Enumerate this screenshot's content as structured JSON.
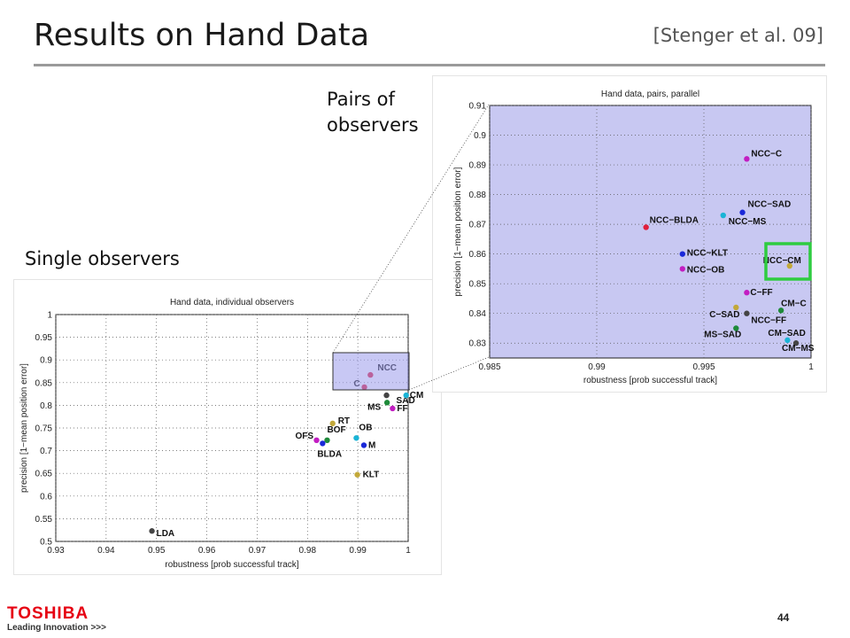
{
  "slide": {
    "title": "Results on Hand Data",
    "citation": "[Stenger et al. 09]",
    "label_pairs": "Pairs of observers",
    "label_single": "Single observers",
    "page_number": "44"
  },
  "footer": {
    "logo_text": "TOSHIBA",
    "tagline": "Leading Innovation >>>"
  },
  "colors": {
    "plot_bg_zoom": "#c8c8f2",
    "zoom_rect_fill": "#9b9beb",
    "highlight_box": "#2ecc40",
    "red": "#e01e3c",
    "blue": "#1a28d8",
    "cyan": "#1ab4d6",
    "olive": "#c2a83a",
    "magenta": "#c21ec2",
    "green": "#1e8a3a",
    "darkgray": "#444444"
  },
  "chart_data": [
    {
      "type": "scatter",
      "title": "Hand data, individual observers",
      "xlabel": "robustness [prob successful track]",
      "ylabel": "precision [1−mean position error]",
      "xlim": [
        0.93,
        1
      ],
      "ylim": [
        0.5,
        1
      ],
      "x_ticks": [
        "0.93",
        "0.94",
        "0.95",
        "0.96",
        "0.97",
        "0.98",
        "0.99",
        "1"
      ],
      "y_ticks": [
        "0.5",
        "0.55",
        "0.6",
        "0.65",
        "0.7",
        "0.75",
        "0.8",
        "0.85",
        "0.9",
        "0.95",
        "1"
      ],
      "grid": true,
      "points": [
        {
          "label": "NCC",
          "x": 0.9925,
          "y": 0.867,
          "color": "red"
        },
        {
          "label": "C",
          "x": 0.9913,
          "y": 0.84,
          "color": "red"
        },
        {
          "label": "SAD",
          "x": 0.9957,
          "y": 0.822,
          "color": "darkgray"
        },
        {
          "label": "CM",
          "x": 0.9996,
          "y": 0.822,
          "color": "cyan"
        },
        {
          "label": "MS",
          "x": 0.9958,
          "y": 0.806,
          "color": "green"
        },
        {
          "label": "FF",
          "x": 0.9969,
          "y": 0.793,
          "color": "magenta"
        },
        {
          "label": "RT",
          "x": 0.985,
          "y": 0.76,
          "color": "olive"
        },
        {
          "label": "BOF",
          "x": 0.9839,
          "y": 0.723,
          "color": "green"
        },
        {
          "label": "OFS",
          "x": 0.9818,
          "y": 0.723,
          "color": "magenta"
        },
        {
          "label": "OB",
          "x": 0.9897,
          "y": 0.728,
          "color": "cyan"
        },
        {
          "label": "M",
          "x": 0.9912,
          "y": 0.712,
          "color": "blue"
        },
        {
          "label": "BLDA",
          "x": 0.983,
          "y": 0.716,
          "color": "blue"
        },
        {
          "label": "KLT",
          "x": 0.9899,
          "y": 0.647,
          "color": "olive"
        },
        {
          "label": "LDA",
          "x": 0.9491,
          "y": 0.523,
          "color": "darkgray"
        }
      ]
    },
    {
      "type": "scatter",
      "title": "Hand data, pairs, parallel",
      "xlabel": "robustness [prob successful track]",
      "ylabel": "precision [1−mean position error]",
      "xlim": [
        0.985,
        1
      ],
      "ylim": [
        0.825,
        0.91
      ],
      "x_ticks": [
        "0.985",
        "0.99",
        "0.995",
        "1"
      ],
      "y_ticks": [
        "0.83",
        "0.84",
        "0.85",
        "0.86",
        "0.87",
        "0.88",
        "0.89",
        "0.9",
        "0.91"
      ],
      "grid": true,
      "points": [
        {
          "label": "NCC−C",
          "x": 0.997,
          "y": 0.892,
          "color": "magenta"
        },
        {
          "label": "NCC−SAD",
          "x": 0.9968,
          "y": 0.874,
          "color": "blue"
        },
        {
          "label": "NCC−MS",
          "x": 0.9959,
          "y": 0.873,
          "color": "cyan"
        },
        {
          "label": "NCC−BLDA",
          "x": 0.9923,
          "y": 0.869,
          "color": "red"
        },
        {
          "label": "NCC−KLT",
          "x": 0.994,
          "y": 0.86,
          "color": "blue"
        },
        {
          "label": "NCC−OB",
          "x": 0.994,
          "y": 0.855,
          "color": "magenta"
        },
        {
          "label": "NCC−CM",
          "x": 0.999,
          "y": 0.856,
          "color": "olive"
        },
        {
          "label": "C−FF",
          "x": 0.997,
          "y": 0.847,
          "color": "magenta"
        },
        {
          "label": "CM−C",
          "x": 0.9986,
          "y": 0.841,
          "color": "green"
        },
        {
          "label": "C−SAD",
          "x": 0.9965,
          "y": 0.842,
          "color": "olive"
        },
        {
          "label": "NCC−FF",
          "x": 0.997,
          "y": 0.84,
          "color": "darkgray"
        },
        {
          "label": "MS−SAD",
          "x": 0.9965,
          "y": 0.835,
          "color": "green"
        },
        {
          "label": "CM−SAD",
          "x": 0.9989,
          "y": 0.831,
          "color": "cyan"
        },
        {
          "label": "CM−MS",
          "x": 0.9993,
          "y": 0.83,
          "color": "darkgray"
        }
      ]
    }
  ]
}
